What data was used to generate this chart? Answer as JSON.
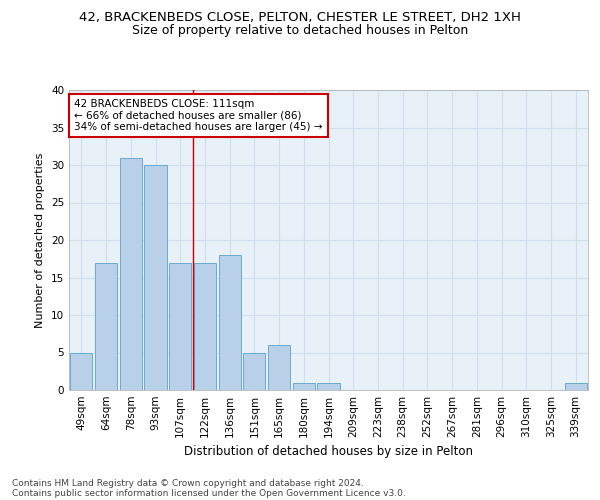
{
  "title_line1": "42, BRACKENBEDS CLOSE, PELTON, CHESTER LE STREET, DH2 1XH",
  "title_line2": "Size of property relative to detached houses in Pelton",
  "xlabel": "Distribution of detached houses by size in Pelton",
  "ylabel": "Number of detached properties",
  "categories": [
    "49sqm",
    "64sqm",
    "78sqm",
    "93sqm",
    "107sqm",
    "122sqm",
    "136sqm",
    "151sqm",
    "165sqm",
    "180sqm",
    "194sqm",
    "209sqm",
    "223sqm",
    "238sqm",
    "252sqm",
    "267sqm",
    "281sqm",
    "296sqm",
    "310sqm",
    "325sqm",
    "339sqm"
  ],
  "values": [
    5,
    17,
    31,
    30,
    17,
    17,
    18,
    5,
    6,
    1,
    1,
    0,
    0,
    0,
    0,
    0,
    0,
    0,
    0,
    0,
    1
  ],
  "bar_color": "#b8d0e8",
  "bar_edge_color": "#6aaad4",
  "grid_color": "#d0dff0",
  "background_color": "#e8f0f8",
  "annotation_line1": "42 BRACKENBEDS CLOSE: 111sqm",
  "annotation_line2": "← 66% of detached houses are smaller (86)",
  "annotation_line3": "34% of semi-detached houses are larger (45) →",
  "annotation_box_color": "#ffffff",
  "annotation_box_edge_color": "#cc0000",
  "red_line_x": 4.5,
  "ylim": [
    0,
    40
  ],
  "yticks": [
    0,
    5,
    10,
    15,
    20,
    25,
    30,
    35,
    40
  ],
  "footnote_line1": "Contains HM Land Registry data © Crown copyright and database right 2024.",
  "footnote_line2": "Contains public sector information licensed under the Open Government Licence v3.0.",
  "title1_fontsize": 9.5,
  "title2_fontsize": 9,
  "xlabel_fontsize": 8.5,
  "ylabel_fontsize": 8,
  "tick_fontsize": 7.5,
  "annot_fontsize": 7.5,
  "footnote_fontsize": 6.5
}
